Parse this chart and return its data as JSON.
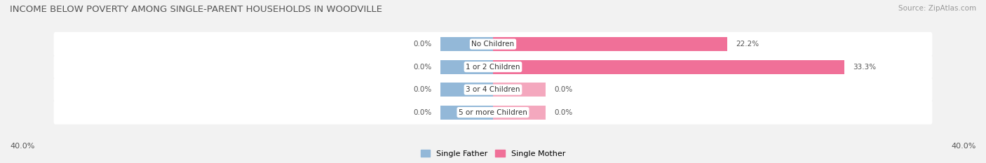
{
  "title": "INCOME BELOW POVERTY AMONG SINGLE-PARENT HOUSEHOLDS IN WOODVILLE",
  "source": "Source: ZipAtlas.com",
  "categories": [
    "No Children",
    "1 or 2 Children",
    "3 or 4 Children",
    "5 or more Children"
  ],
  "single_father": [
    0.0,
    0.0,
    0.0,
    0.0
  ],
  "single_mother": [
    22.2,
    33.3,
    0.0,
    0.0
  ],
  "father_color": "#93b8d8",
  "mother_color": "#f07098",
  "mother_color_light": "#f4a8be",
  "father_label": "Single Father",
  "mother_label": "Single Mother",
  "axis_max": 40.0,
  "background_color": "#f2f2f2",
  "row_bg_color": "#e8e8e8",
  "title_fontsize": 9.5,
  "source_fontsize": 7.5,
  "label_fontsize": 7.5,
  "value_fontsize": 7.5,
  "cat_label_fontsize": 7.5,
  "stub_father": 5.0,
  "stub_mother": 5.0
}
